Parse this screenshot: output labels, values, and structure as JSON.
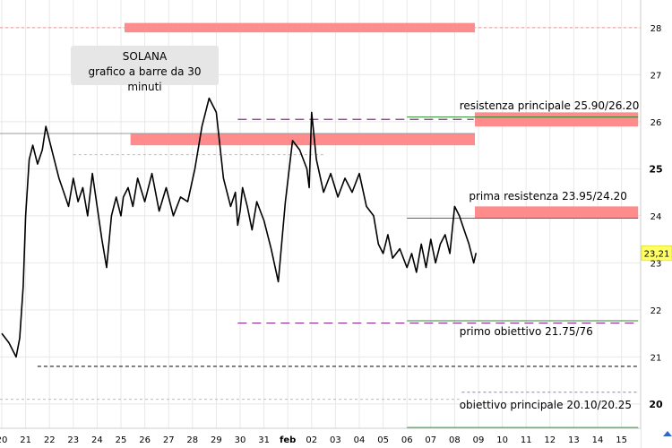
{
  "chart_data": {
    "type": "line",
    "title": "SOLANA",
    "subtitle": "grafico a barre da 30 minuti",
    "ylim": [
      19.3,
      28.5
    ],
    "y_ticks": [
      "20",
      "21",
      "22",
      "23",
      "24",
      "25",
      "26",
      "27",
      "28"
    ],
    "x_ticks": [
      "20",
      "21",
      "22",
      "23",
      "24",
      "25",
      "26",
      "27",
      "28",
      "29",
      "30",
      "31",
      "feb",
      "02",
      "03",
      "04",
      "05",
      "06",
      "07",
      "08",
      "09",
      "10",
      "11",
      "12",
      "13",
      "14",
      "15"
    ],
    "last_price_label": "23,21",
    "last_price": 23.21,
    "series": [
      {
        "x": [
          0,
          0.3,
          0.6,
          0.75,
          0.9,
          1.0,
          1.15,
          1.3,
          1.5,
          1.7,
          1.85,
          2.0,
          2.2,
          2.4,
          2.6,
          2.8,
          3.0,
          3.2,
          3.4,
          3.6,
          3.8,
          4.0,
          4.2,
          4.4,
          4.6,
          4.8,
          4.9,
          5.0,
          5.1,
          5.3,
          5.5,
          5.7,
          6.0,
          6.3,
          6.6,
          6.9,
          7.2,
          7.5,
          7.8,
          8.1,
          8.4,
          8.7,
          9.0,
          9.3,
          9.6,
          9.8,
          9.9,
          10.0,
          10.1,
          10.3,
          10.5,
          10.7,
          11.0,
          11.3,
          11.6,
          11.9,
          12.2,
          12.5,
          12.8,
          12.9,
          13.0,
          13.2,
          13.5,
          13.8,
          14.1,
          14.4,
          14.7,
          15.0,
          15.3,
          15.6,
          15.8,
          16.0,
          16.2,
          16.4,
          16.7,
          17.0,
          17.2,
          17.4,
          17.6,
          17.8,
          18.0,
          18.2,
          18.4,
          18.6,
          18.8,
          19.0,
          19.2,
          19.4,
          19.6,
          19.8,
          19.9
        ],
        "values": [
          21.5,
          21.3,
          21.0,
          21.4,
          22.5,
          24.0,
          25.2,
          25.5,
          25.1,
          25.4,
          25.9,
          25.6,
          25.2,
          24.8,
          24.5,
          24.2,
          24.8,
          24.3,
          24.6,
          24.0,
          24.9,
          24.2,
          23.5,
          22.9,
          24.0,
          24.4,
          24.2,
          24.0,
          24.4,
          24.6,
          24.2,
          24.8,
          24.3,
          24.9,
          24.1,
          24.6,
          24.0,
          24.4,
          24.3,
          25.0,
          25.9,
          26.5,
          26.2,
          24.8,
          24.2,
          24.5,
          23.8,
          24.1,
          24.6,
          24.2,
          23.7,
          24.3,
          23.9,
          23.3,
          22.6,
          24.3,
          25.6,
          25.4,
          25.0,
          24.6,
          26.2,
          25.2,
          24.5,
          24.9,
          24.4,
          24.8,
          24.5,
          24.9,
          24.2,
          24.0,
          23.4,
          23.2,
          23.6,
          23.1,
          23.3,
          22.9,
          23.2,
          22.8,
          23.4,
          22.9,
          23.5,
          23.0,
          23.4,
          23.6,
          23.2,
          24.2,
          24.0,
          23.7,
          23.4,
          23.0,
          23.21
        ]
      }
    ],
    "zones": [
      {
        "from": 27.9,
        "to": 28.1,
        "x_from": 5.15,
        "x_to": 19.85
      },
      {
        "from": 25.5,
        "to": 25.75,
        "x_from": 5.4,
        "x_to": 19.85
      },
      {
        "from": 25.9,
        "to": 26.2,
        "x_from": 19.85,
        "x_to": 26.7
      },
      {
        "from": 23.95,
        "to": 24.2,
        "x_from": 19.85,
        "x_to": 26.7
      }
    ],
    "levels": [
      {
        "value": 28.0,
        "style": "dotted-pink",
        "x_from": -0.2,
        "x_to": 27.3
      },
      {
        "value": 26.05,
        "style": "dashed-purple",
        "x_from": 9.9,
        "x_to": 19.8
      },
      {
        "value": 26.1,
        "style": "solid-green",
        "x_from": 17.0,
        "x_to": 26.7
      },
      {
        "value": 25.75,
        "style": "solid-gray",
        "x_from": -0.2,
        "x_to": 19.85
      },
      {
        "value": 25.3,
        "style": "dotted-gray",
        "x_from": 3.0,
        "x_to": 13.5
      },
      {
        "value": 23.95,
        "style": "solid-green",
        "x_from": 17.0,
        "x_to": 26.7
      },
      {
        "value": 21.77,
        "style": "solid-green",
        "x_from": 17.0,
        "x_to": 26.7
      },
      {
        "value": 21.72,
        "style": "dashed-purple",
        "x_from": 9.9,
        "x_to": 26.7
      },
      {
        "value": 20.8,
        "style": "dashed-black",
        "x_from": 1.5,
        "x_to": 26.7
      },
      {
        "value": 20.25,
        "style": "dotted-blue",
        "x_from": 19.3,
        "x_to": 26.7
      },
      {
        "value": 20.1,
        "style": "dotted-gray",
        "x_from": -0.2,
        "x_to": 19.2
      },
      {
        "value": 19.5,
        "style": "solid-green",
        "x_from": 17.0,
        "x_to": 26.7
      }
    ],
    "annotations": [
      {
        "text": "resistenza principale 25.90/26.20",
        "y": 26.2,
        "x": 19.2
      },
      {
        "text": "prima resistenza 23.95/24.20",
        "y": 24.28,
        "x": 19.6
      },
      {
        "text": "primo obiettivo 21.75/76",
        "y": 21.4,
        "x": 19.2
      },
      {
        "text": "obiettivo principale 20.10/20.25",
        "y": 19.85,
        "x": 19.2
      }
    ],
    "grid": true
  }
}
